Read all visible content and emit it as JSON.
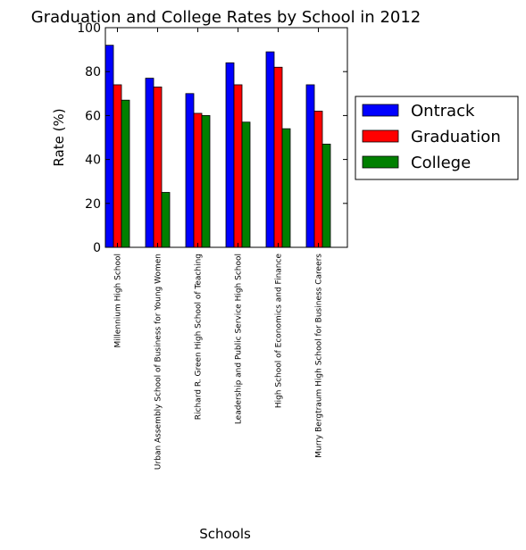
{
  "chart_data": {
    "type": "bar",
    "title": "Graduation and College Rates by School in 2012",
    "xlabel": "Schools",
    "ylabel": "Rate (%)",
    "ylim": [
      0,
      100
    ],
    "yticks": [
      0,
      20,
      40,
      60,
      80,
      100
    ],
    "grid": false,
    "legend_position": "right",
    "categories": [
      "Millennium High School",
      "Urban Assembly School of Business for Young Women",
      "Richard R. Green High School of Teaching",
      "Leadership and Public Service High School",
      "High School of Economics and Finance",
      "Murry Bergtraum High School for Business Careers"
    ],
    "series": [
      {
        "name": "Ontrack",
        "color": "#0000ff",
        "values": [
          92,
          77,
          70,
          84,
          89,
          74
        ]
      },
      {
        "name": "Graduation",
        "color": "#ff0000",
        "values": [
          74,
          73,
          61,
          74,
          82,
          62
        ]
      },
      {
        "name": "College",
        "color": "#008000",
        "values": [
          67,
          25,
          60,
          57,
          54,
          47
        ]
      }
    ]
  }
}
